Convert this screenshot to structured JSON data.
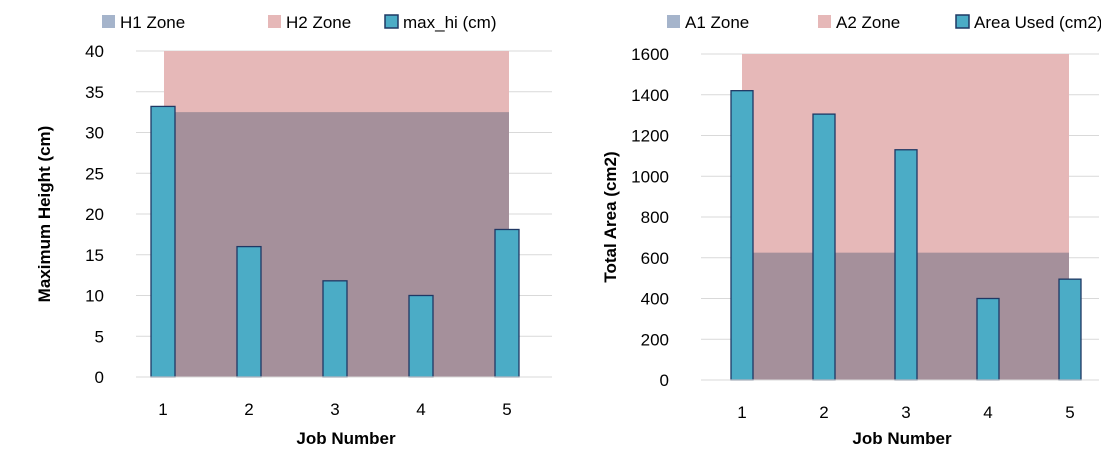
{
  "chart_data": [
    {
      "type": "bar",
      "categories": [
        "1",
        "2",
        "3",
        "4",
        "5"
      ],
      "series": [
        {
          "name": "max_hi (cm)",
          "values": [
            33.2,
            16.0,
            11.8,
            10.0,
            18.1
          ]
        }
      ],
      "zones": [
        {
          "name": "H1 Zone",
          "upper": 32.5,
          "color": "#a5909b"
        },
        {
          "name": "H2 Zone",
          "upper": 40,
          "color": "#e6b8b8"
        }
      ],
      "legend": [
        "H1 Zone",
        "H2 Zone",
        "max_hi (cm)"
      ],
      "legend_colors": [
        "#a5b4cb",
        "#e6b8b8",
        "#4bacc6"
      ],
      "xlabel": "Job Number",
      "ylabel": "Maximum Height (cm)",
      "ylim": [
        0,
        40
      ],
      "yticks": [
        "0",
        "5",
        "10",
        "15",
        "20",
        "25",
        "30",
        "35",
        "40"
      ],
      "grid": true,
      "legend_position": "top",
      "bar_color": "#4bacc6",
      "bar_border": "#1f3864"
    },
    {
      "type": "bar",
      "categories": [
        "1",
        "2",
        "3",
        "4",
        "5"
      ],
      "series": [
        {
          "name": "Area Used (cm2)",
          "values": [
            1420,
            1305,
            1130,
            400,
            495
          ]
        }
      ],
      "zones": [
        {
          "name": "A1 Zone",
          "upper": 625,
          "color": "#a5909b"
        },
        {
          "name": "A2 Zone",
          "upper": 1600,
          "color": "#e6b8b8"
        }
      ],
      "legend": [
        "A1 Zone",
        "A2 Zone",
        "Area Used (cm2)"
      ],
      "legend_colors": [
        "#a5b4cb",
        "#e6b8b8",
        "#4bacc6"
      ],
      "xlabel": "Job Number",
      "ylabel": "Total Area (cm2)",
      "ylim": [
        0,
        1600
      ],
      "yticks": [
        "0",
        "200",
        "400",
        "600",
        "800",
        "1000",
        "1200",
        "1400",
        "1600"
      ],
      "grid": true,
      "legend_position": "top",
      "bar_color": "#4bacc6",
      "bar_border": "#1f3864"
    }
  ]
}
